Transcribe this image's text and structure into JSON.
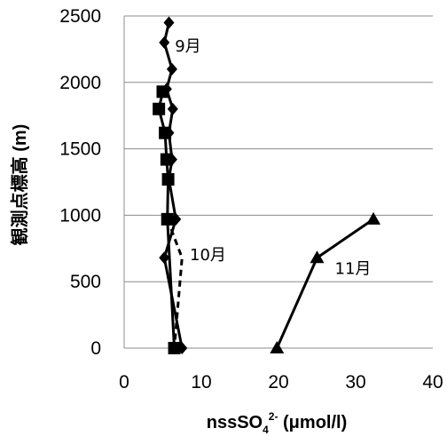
{
  "chart_data": {
    "type": "line",
    "title": "",
    "xlabel": "nssSO",
    "xlabel_sub": "4",
    "xlabel_sup": "2-",
    "xlabel_unit": " (μmol/l)",
    "ylabel": "観測点標高 (m)",
    "xlim": [
      0,
      40
    ],
    "ylim": [
      0,
      2500
    ],
    "xticks": [
      0,
      10,
      20,
      30,
      40
    ],
    "yticks": [
      0,
      500,
      1000,
      1500,
      2000,
      2500
    ],
    "xtick_labels": [
      "0",
      "10",
      "20",
      "30",
      "40"
    ],
    "ytick_labels": [
      "0",
      "500",
      "1000",
      "1500",
      "2000",
      "2500"
    ],
    "grid": "horizontal",
    "legend": "none",
    "series": [
      {
        "label": "9月",
        "marker": "diamond",
        "line": "solid",
        "x": [
          7.5,
          5.2,
          6.7,
          5.8,
          6.2,
          5.8,
          6.3,
          5.5,
          6.2,
          5.2,
          5.8
        ],
        "y": [
          0,
          680,
          970,
          1270,
          1420,
          1620,
          1800,
          1950,
          2100,
          2300,
          2450
        ]
      },
      {
        "label": "10月",
        "marker": "square",
        "line": "solid",
        "x": [
          6.5,
          5.6,
          5.7,
          5.5,
          5.3,
          4.5,
          5.0
        ],
        "y": [
          0,
          970,
          1270,
          1420,
          1620,
          1800,
          1930
        ]
      },
      {
        "label": "",
        "marker": "none",
        "line": "dashed",
        "x": [
          5.6,
          7.5,
          6.5
        ],
        "y": [
          970,
          680,
          0
        ]
      },
      {
        "label": "11月",
        "marker": "triangle",
        "line": "solid",
        "x": [
          19.8,
          25.0,
          32.3
        ],
        "y": [
          0,
          680,
          970
        ]
      }
    ]
  }
}
